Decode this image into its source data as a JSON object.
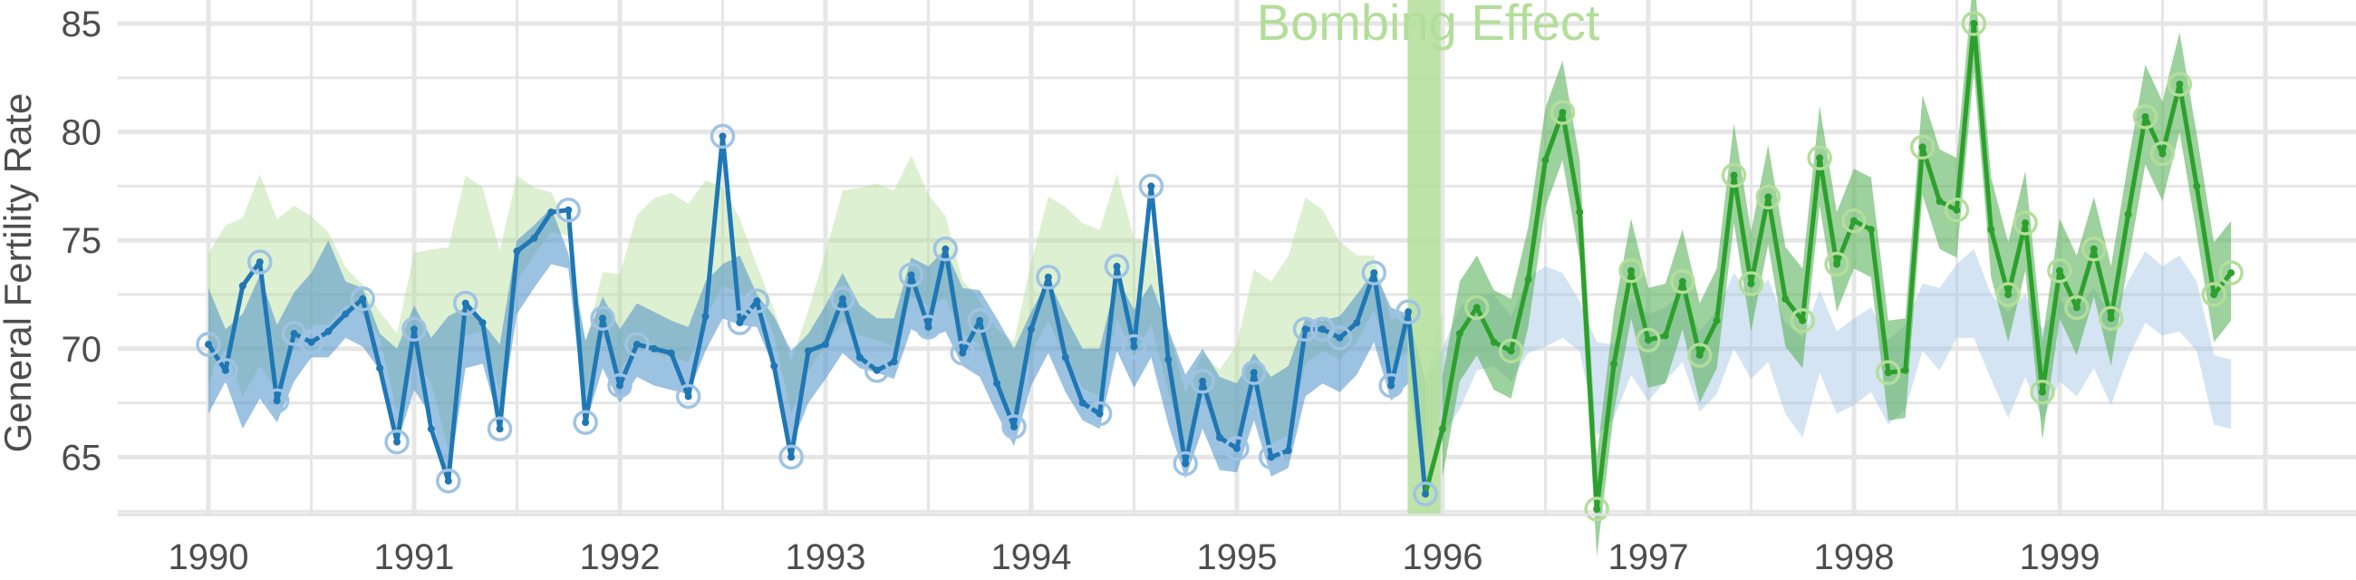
{
  "chart_data": {
    "type": "line",
    "title": "",
    "xlabel": "",
    "ylabel": "General Fertility Rate",
    "xlim": [
      1989.75,
      2000.0
    ],
    "ylim": [
      61.5,
      86.0
    ],
    "x_ticks": [
      1990,
      1991,
      1992,
      1993,
      1994,
      1995,
      1996,
      1997,
      1998,
      1999
    ],
    "x_tick_labels": [
      "1990",
      "1991",
      "1992",
      "1993",
      "1994",
      "1995",
      "1996",
      "1997",
      "1998",
      "1999"
    ],
    "y_ticks": [
      65,
      70,
      75,
      80,
      85
    ],
    "y_tick_labels": [
      "65",
      "70",
      "75",
      "80",
      "85"
    ],
    "grid": true,
    "legend": "none",
    "annotation": {
      "text": "Bombing Effect",
      "x": 1995.93,
      "band": [
        1995.83,
        1995.99
      ]
    },
    "colors": {
      "pre_line": "#1f77b4",
      "pre_band": "#4a8fc9",
      "post_line": "#2ca02c",
      "post_band": "#5cb35c",
      "light_green": "#b3de9a",
      "light_blue": "#9fc3e3",
      "grid": "#e6e6e6",
      "annotation": "#b3de9a"
    },
    "series": [
      {
        "role": "observed",
        "x0": 1990.0,
        "dx": 0.08333,
        "values": [
          70.2,
          69.0,
          72.9,
          74.0,
          67.6,
          70.7,
          70.3,
          70.8,
          71.6,
          72.3,
          69.1,
          65.7,
          70.9,
          66.3,
          63.9,
          72.1,
          71.2,
          66.3,
          74.5,
          75.1,
          76.3,
          76.4,
          66.6,
          71.4,
          68.3,
          70.2,
          70.0,
          69.8,
          67.8,
          71.5,
          79.8,
          71.2,
          72.2,
          69.2,
          65.0,
          69.9,
          70.2,
          72.3,
          69.6,
          69.0,
          69.4,
          73.4,
          71.0,
          74.6,
          69.8,
          71.3,
          68.4,
          66.4,
          70.9,
          73.3,
          69.6,
          67.5,
          67.0,
          73.8,
          70.1,
          77.5,
          69.5,
          64.7,
          68.5,
          65.9,
          65.4,
          68.9,
          65.0,
          65.3,
          70.9,
          70.9,
          70.5,
          71.2,
          73.5,
          68.3,
          71.7,
          63.3,
          66.3,
          70.7,
          71.9,
          70.3,
          69.9,
          73.2,
          78.7,
          80.9,
          76.3,
          62.6,
          69.3,
          73.6,
          70.4,
          70.6,
          73.1,
          69.7,
          71.3,
          78.0,
          73.0,
          77.0,
          72.3,
          71.3,
          78.8,
          73.9,
          75.9,
          75.5,
          68.9,
          69.0,
          79.3,
          76.8,
          76.4,
          85.0,
          75.5,
          72.5,
          75.8,
          68.0,
          73.6,
          71.9,
          74.6,
          71.4,
          76.2,
          80.7,
          79.0,
          82.2,
          77.5,
          72.5,
          73.5
        ]
      },
      {
        "role": "counterfactual_band",
        "x0": 1990.0,
        "dx": 0.08333,
        "lower": [
          67.0,
          68.5,
          66.3,
          67.7,
          66.6,
          68.5,
          69.6,
          69.6,
          70.5,
          70.1,
          69.0,
          65.6,
          68.1,
          66.9,
          63.8,
          69.1,
          69.3,
          66.5,
          71.6,
          72.8,
          73.9,
          73.7,
          66.5,
          69.1,
          67.5,
          68.7,
          68.3,
          68.1,
          67.9,
          69.9,
          71.4,
          71.1,
          71.0,
          69.1,
          65.5,
          67.5,
          68.6,
          69.8,
          69.1,
          68.9,
          68.6,
          70.9,
          70.5,
          70.8,
          69.2,
          68.7,
          67.0,
          65.5,
          68.3,
          69.8,
          68.0,
          66.7,
          66.3,
          69.9,
          68.2,
          69.6,
          66.5,
          64.0,
          66.3,
          64.4,
          64.3,
          66.7,
          64.1,
          64.5,
          67.8,
          68.4,
          68.0,
          68.8,
          70.3,
          67.6,
          68.4,
          63.5,
          66.0,
          67.2,
          69.0,
          69.2,
          68.5,
          69.8,
          70.1,
          70.5,
          69.9,
          66.0,
          66.8,
          68.8,
          67.6,
          68.5,
          69.4,
          67.1,
          67.9,
          70.0,
          68.6,
          69.4,
          67.0,
          65.9,
          68.9,
          67.0,
          67.4,
          68.0,
          66.5,
          67.2,
          69.9,
          69.0,
          70.5,
          70.5,
          68.6,
          66.8,
          68.7,
          66.7,
          68.5,
          67.8,
          69.1,
          67.4,
          69.6,
          71.2,
          70.6,
          70.8,
          69.9,
          66.5,
          66.3
        ],
        "upper": [
          72.8,
          70.9,
          71.6,
          73.4,
          71.1,
          72.6,
          73.5,
          75.0,
          73.1,
          72.8,
          70.7,
          70.0,
          72.0,
          70.5,
          71.5,
          71.9,
          71.2,
          70.2,
          75.0,
          75.7,
          76.5,
          74.4,
          70.4,
          72.4,
          70.9,
          72.1,
          71.7,
          71.3,
          71.0,
          73.1,
          73.9,
          74.3,
          72.5,
          71.5,
          69.9,
          70.7,
          72.0,
          73.5,
          72.0,
          71.4,
          71.4,
          74.2,
          73.8,
          74.6,
          72.8,
          72.7,
          71.4,
          70.0,
          71.7,
          73.2,
          71.5,
          70.0,
          70.0,
          73.3,
          71.8,
          73.0,
          70.9,
          68.8,
          70.0,
          68.7,
          68.4,
          69.8,
          68.7,
          69.2,
          71.4,
          71.3,
          71.5,
          72.5,
          73.6,
          71.9,
          71.6,
          68.6,
          70.0,
          71.9,
          72.5,
          72.5,
          71.5,
          73.3,
          73.8,
          73.5,
          72.2,
          70.3,
          70.2,
          72.3,
          71.6,
          71.9,
          72.6,
          70.8,
          71.8,
          73.5,
          72.4,
          73.2,
          71.2,
          70.5,
          72.7,
          70.8,
          71.4,
          71.9,
          70.4,
          71.1,
          73.0,
          72.8,
          73.9,
          74.6,
          72.5,
          71.7,
          72.5,
          70.9,
          72.2,
          71.8,
          72.8,
          71.5,
          73.1,
          74.5,
          73.8,
          74.3,
          73.1,
          69.7,
          69.5
        ]
      }
    ],
    "breakpoint": 1995.92
  }
}
